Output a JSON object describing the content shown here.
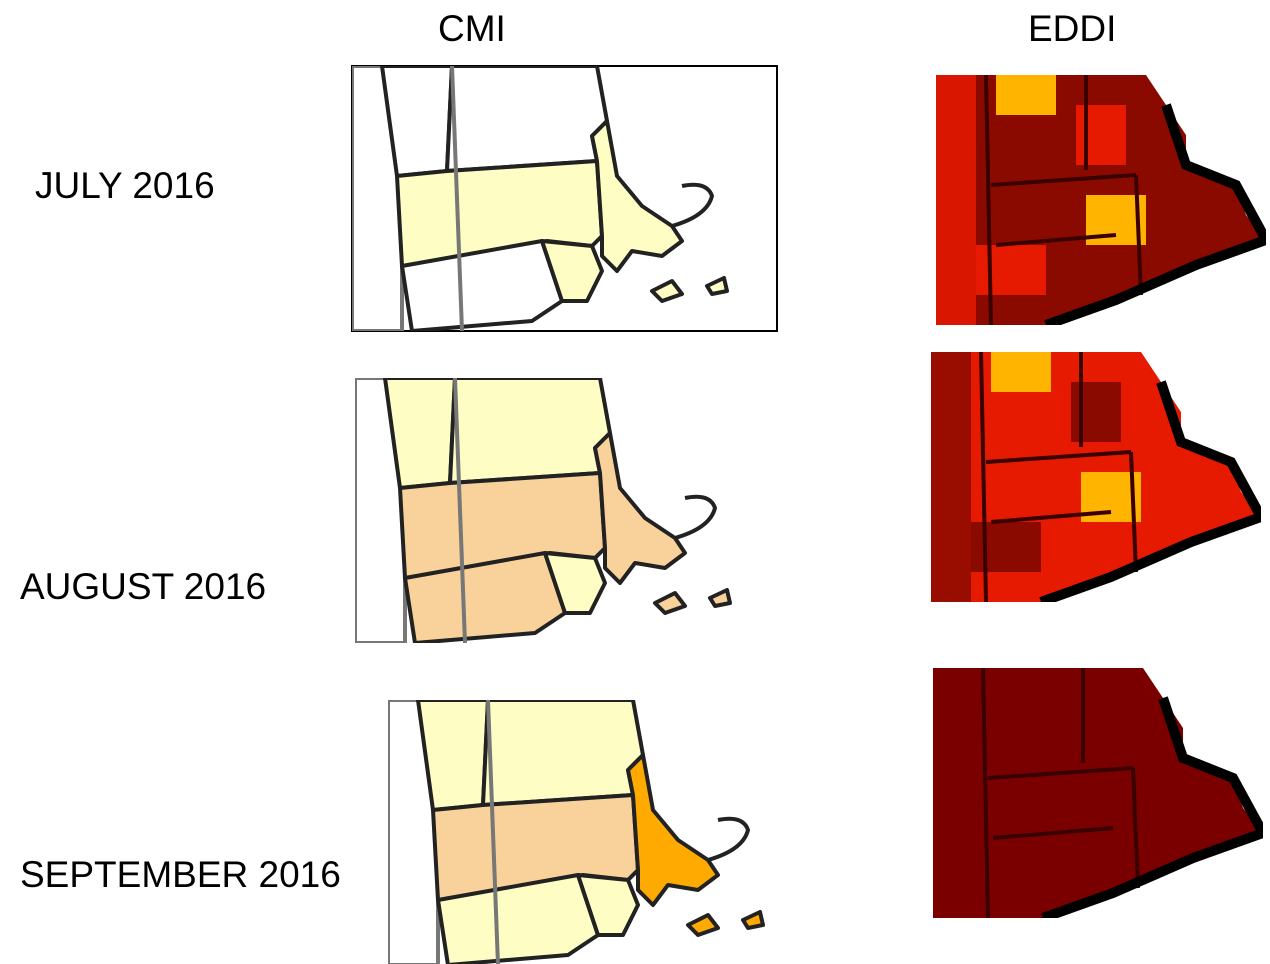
{
  "columns": [
    "CMI",
    "EDDI"
  ],
  "rows": [
    "JULY 2016",
    "AUGUST 2016",
    "SEPTEMBER 2016"
  ]
}
